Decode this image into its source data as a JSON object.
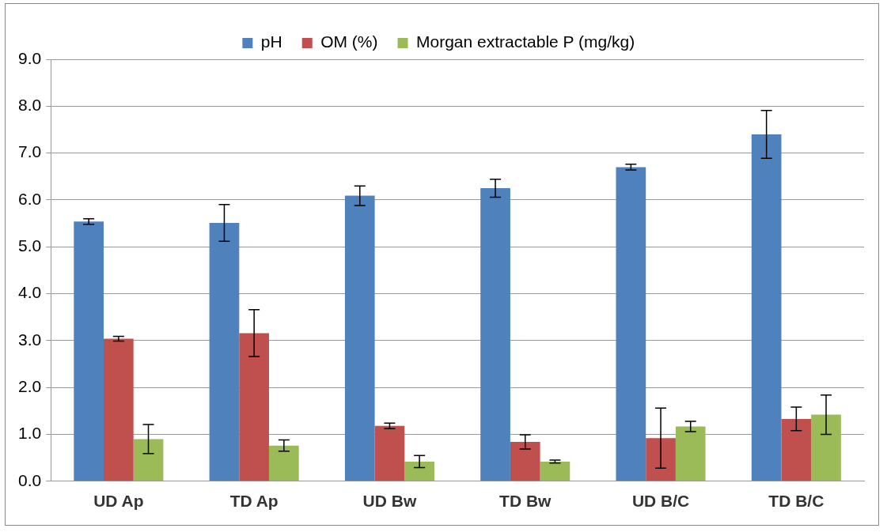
{
  "chart_data": {
    "type": "bar",
    "categories": [
      "UD Ap",
      "TD Ap",
      "UD Bw",
      "TD Bw",
      "UD B/C",
      "TD B/C"
    ],
    "series": [
      {
        "name": "pH",
        "color": "#4f81bd",
        "values": [
          5.54,
          5.51,
          6.09,
          6.25,
          6.7,
          7.4
        ],
        "errors": [
          0.06,
          0.39,
          0.21,
          0.19,
          0.06,
          0.51
        ]
      },
      {
        "name": "OM (%)",
        "color": "#c0504d",
        "values": [
          3.04,
          3.16,
          1.18,
          0.84,
          0.92,
          1.33
        ],
        "errors": [
          0.05,
          0.5,
          0.06,
          0.15,
          0.64,
          0.25
        ]
      },
      {
        "name": "Morgan extractable P (mg/kg)",
        "color": "#9bbb59",
        "values": [
          0.9,
          0.76,
          0.42,
          0.42,
          1.17,
          1.42
        ],
        "errors": [
          0.31,
          0.12,
          0.13,
          0.03,
          0.11,
          0.42
        ]
      }
    ],
    "ylim": [
      0,
      9
    ],
    "yticks": [
      {
        "value": 0,
        "label": "0.0"
      },
      {
        "value": 1,
        "label": "1.0"
      },
      {
        "value": 2,
        "label": "2.0"
      },
      {
        "value": 3,
        "label": "3.0"
      },
      {
        "value": 4,
        "label": "4.0"
      },
      {
        "value": 5,
        "label": "5.0"
      },
      {
        "value": 6,
        "label": "6.0"
      },
      {
        "value": 7,
        "label": "7.0"
      },
      {
        "value": 8,
        "label": "8.0"
      },
      {
        "value": 9,
        "label": "9.0"
      }
    ],
    "grid": "y",
    "legend": "top"
  }
}
